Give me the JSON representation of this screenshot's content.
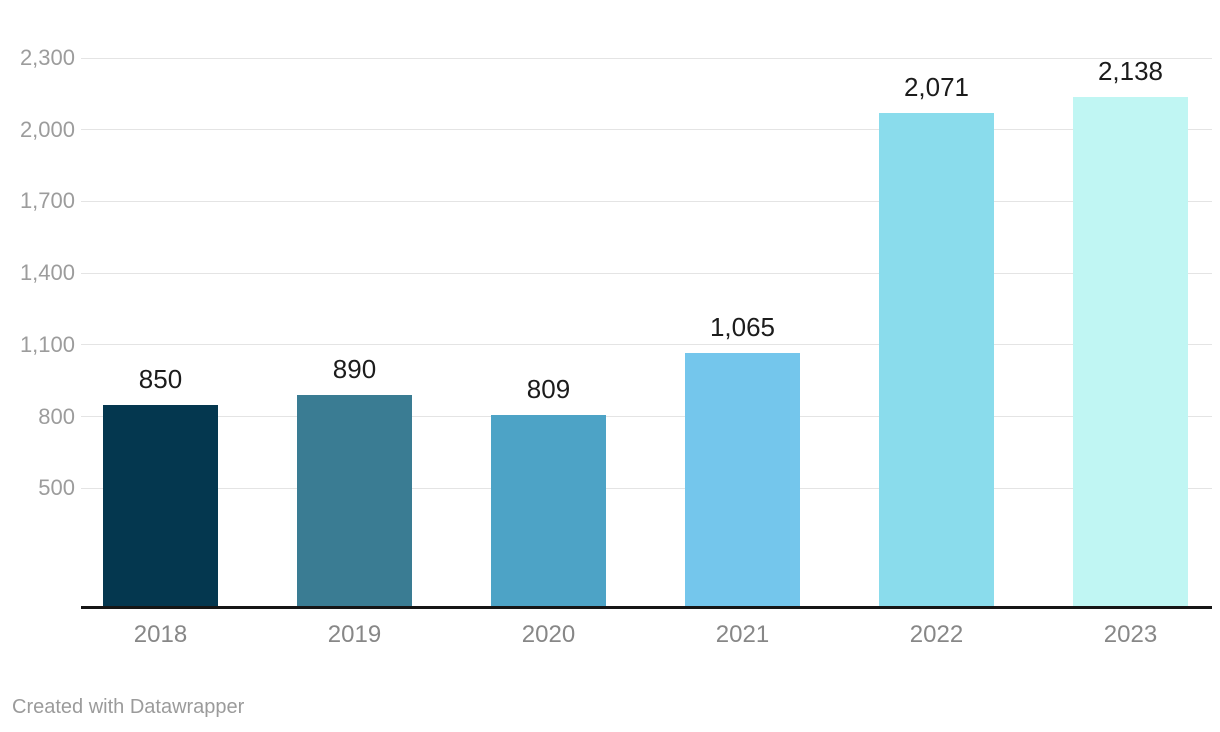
{
  "chart_data": {
    "type": "bar",
    "title": "",
    "xlabel": "",
    "ylabel": "",
    "categories": [
      "2018",
      "2019",
      "2020",
      "2021",
      "2022",
      "2023"
    ],
    "values": [
      850,
      890,
      809,
      1065,
      2071,
      2138
    ],
    "value_labels": [
      "850",
      "890",
      "809",
      "1,065",
      "2,071",
      "2,138"
    ],
    "bar_colors": [
      "#04374f",
      "#3a7c93",
      "#4da3c6",
      "#74c6ec",
      "#8adcec",
      "#c0f6f3"
    ],
    "ylim": [
      0,
      2300
    ],
    "ytick_values": [
      500,
      800,
      1100,
      1400,
      1700,
      2000,
      2300
    ],
    "ytick_labels": [
      "500",
      "800",
      "1,100",
      "1,400",
      "1,700",
      "2,000",
      "2,300"
    ],
    "grid": true,
    "legend_position": "none"
  },
  "footer": {
    "attribution": "Created with Datawrapper"
  },
  "colors": {
    "background": "#ffffff",
    "gridline": "#e4e4e4",
    "axis_line": "#161616",
    "ytick_text": "#9c9c9c",
    "xtick_text": "#878787",
    "value_text": "#1c1c1c",
    "footer_text": "#9b9b9b"
  }
}
